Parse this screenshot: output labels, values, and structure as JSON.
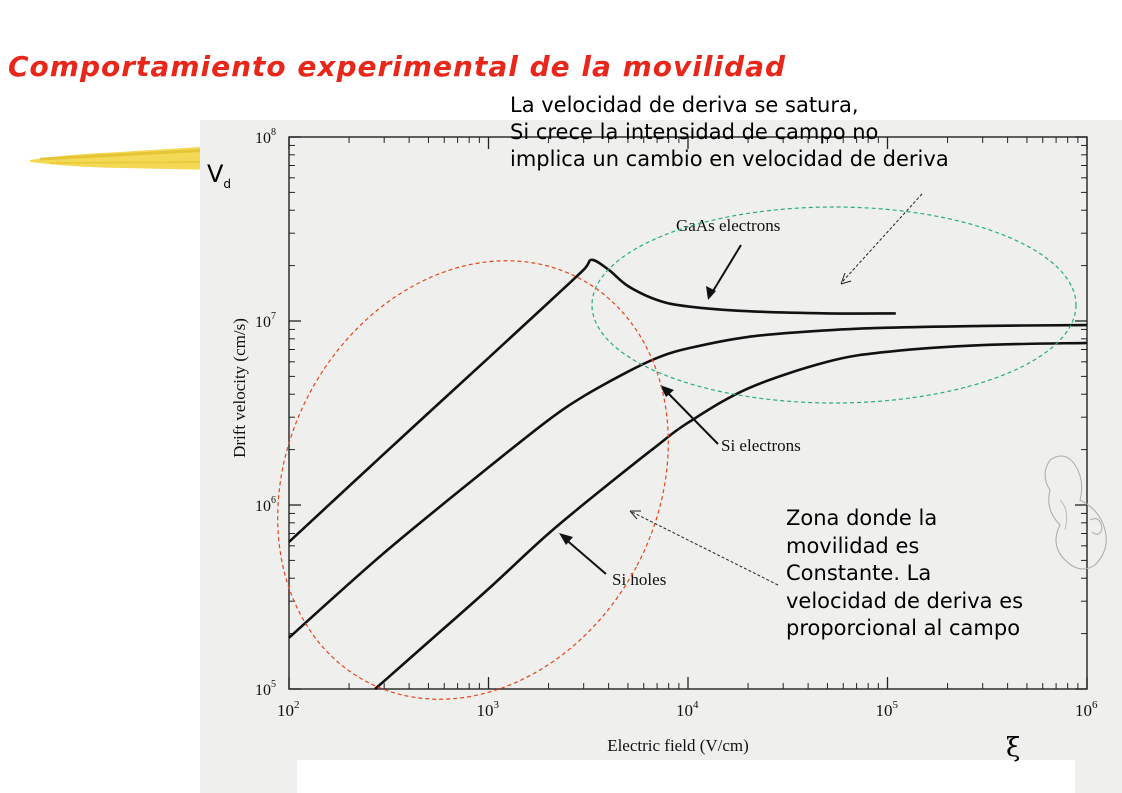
{
  "slide": {
    "title": "Comportamiento experimental de la movilidad",
    "vd_main": "V",
    "vd_sub": "d",
    "xi_symbol": "ξ",
    "note_top_lines": [
      "La velocidad de deriva se satura,",
      "Si crece la intensidad de campo no",
      "implica un cambio en velocidad de deriva"
    ],
    "note_bottom_lines": [
      "Zona donde la",
      "movilidad es",
      "Constante. La",
      "velocidad de deriva es",
      "proporcional al campo"
    ],
    "colors": {
      "title": "#e8261a",
      "saturation_ellipse": "#22b07a",
      "linear_ellipse": "#e8461a",
      "deco_bar": "#f2d23a"
    }
  },
  "chart_data": {
    "type": "line",
    "xlabel": "Electric field (V/cm)",
    "ylabel": "Drift velocity (cm/s)",
    "xscale": "log",
    "yscale": "log",
    "xlim": [
      100,
      1000000
    ],
    "ylim": [
      100000,
      100000000
    ],
    "x_ticks": [
      {
        "value": 100,
        "base": "10",
        "exp": "2"
      },
      {
        "value": 1000,
        "base": "10",
        "exp": "3"
      },
      {
        "value": 10000,
        "base": "10",
        "exp": "4"
      },
      {
        "value": 100000,
        "base": "10",
        "exp": "5"
      },
      {
        "value": 1000000,
        "base": "10",
        "exp": "6"
      }
    ],
    "y_ticks": [
      {
        "value": 100000,
        "base": "10",
        "exp": "5"
      },
      {
        "value": 1000000,
        "base": "10",
        "exp": "6"
      },
      {
        "value": 10000000,
        "base": "10",
        "exp": "7"
      },
      {
        "value": 100000000,
        "base": "10",
        "exp": "8"
      }
    ],
    "series": [
      {
        "name": "GaAs electrons",
        "x": [
          100,
          300,
          1000,
          2000,
          3000,
          3300,
          4000,
          5000,
          7000,
          10000,
          20000,
          50000,
          110000
        ],
        "y": [
          630000,
          1900000,
          6300000,
          12600000,
          19000000,
          21500000,
          19000000,
          15500000,
          13000000,
          12000000,
          11300000,
          11000000,
          11000000
        ]
      },
      {
        "name": "Si electrons",
        "x": [
          100,
          300,
          1000,
          2000,
          3000,
          5000,
          7000,
          10000,
          20000,
          50000,
          100000,
          300000,
          1000000
        ],
        "y": [
          190000,
          550000,
          1600000,
          2900000,
          3900000,
          5300000,
          6300000,
          7100000,
          8200000,
          8900000,
          9200000,
          9400000,
          9500000
        ]
      },
      {
        "name": "Si holes",
        "x": [
          270,
          500,
          1000,
          2000,
          4000,
          7000,
          10000,
          20000,
          50000,
          100000,
          300000,
          1000000
        ],
        "y": [
          100000,
          180000,
          350000,
          700000,
          1300000,
          2100000,
          2800000,
          4300000,
          6000000,
          6800000,
          7400000,
          7600000
        ]
      }
    ],
    "annotations": [
      "GaAs electrons",
      "Si electrons",
      "Si holes"
    ]
  }
}
